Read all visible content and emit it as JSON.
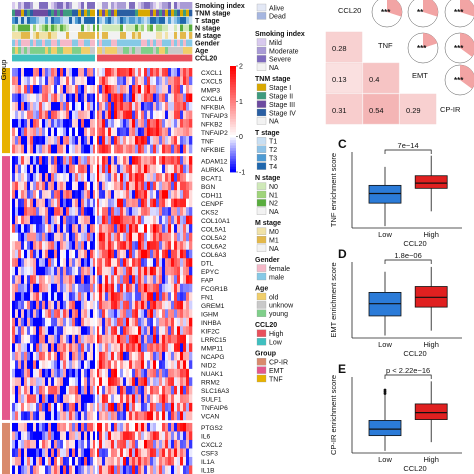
{
  "heatmap": {
    "annotation_rows": [
      "Smoking index",
      "TNM stage",
      "T stage",
      "N stage",
      "M stage",
      "Gender",
      "Age",
      "CCL20"
    ],
    "group_label": "Group",
    "colorbar_ticks": [
      "2",
      "1",
      "0",
      "-1"
    ],
    "gene_groups": [
      {
        "name": "TNF",
        "color": "#e8b200",
        "genes": [
          "CXCL1",
          "CXCL5",
          "MMP3",
          "CXCL6",
          "NFKBIA",
          "TNFAIP3",
          "NFKB2",
          "TNFAIP2",
          "TNF",
          "NFKBIE"
        ]
      },
      {
        "name": "EMT",
        "color": "#e4578c",
        "genes": [
          "ADAM12",
          "AURKA",
          "BCAT1",
          "BGN",
          "CDH11",
          "CENPF",
          "CKS2",
          "COL10A1",
          "COL5A1",
          "COL5A2",
          "COL6A2",
          "COL6A3",
          "DTL",
          "EPYC",
          "FAP",
          "FCGR1B",
          "FN1",
          "GREM1",
          "IGHM",
          "INHBA",
          "KIF2C",
          "LRRC15",
          "MMP11",
          "NCAPG",
          "NID2",
          "NUAK1",
          "RRM2",
          "SLC16A3",
          "SULF1",
          "TNFAIP6",
          "VCAN"
        ]
      },
      {
        "name": "CP-IR",
        "color": "#d98a6c",
        "genes": [
          "PTGS2",
          "IL6",
          "CXCL2",
          "CSF3",
          "IL1A",
          "IL1B"
        ]
      }
    ]
  },
  "legend": {
    "top": [
      {
        "label": "Alive",
        "color": "#e3e8f5"
      },
      {
        "label": "Dead",
        "color": "#a6b6e0"
      }
    ],
    "groups": [
      {
        "title": "Smoking index",
        "items": [
          {
            "label": "Mild",
            "color": "#d8c9ee"
          },
          {
            "label": "Moderate",
            "color": "#a99bd6"
          },
          {
            "label": "Severe",
            "color": "#7f6cbf"
          },
          {
            "label": "NA",
            "color": "#f2f2f2"
          }
        ]
      },
      {
        "title": "TNM stage",
        "items": [
          {
            "label": "Stage I",
            "color": "#d8a800"
          },
          {
            "label": "Stage II",
            "color": "#3e9b7e"
          },
          {
            "label": "Stage III",
            "color": "#6c4aa0"
          },
          {
            "label": "Stage IV",
            "color": "#2a5fa3"
          },
          {
            "label": "NA",
            "color": "#f2f2f2"
          }
        ]
      },
      {
        "title": "T stage",
        "items": [
          {
            "label": "T1",
            "color": "#c8dff3"
          },
          {
            "label": "T2",
            "color": "#8ec3e8"
          },
          {
            "label": "T3",
            "color": "#4d9bd4"
          },
          {
            "label": "T4",
            "color": "#1f67ad"
          }
        ]
      },
      {
        "title": "N stage",
        "items": [
          {
            "label": "N0",
            "color": "#cfe9b8"
          },
          {
            "label": "N1",
            "color": "#9fd47a"
          },
          {
            "label": "N2",
            "color": "#59ad3e"
          },
          {
            "label": "NA",
            "color": "#f2f2f2"
          }
        ]
      },
      {
        "title": "M stage",
        "items": [
          {
            "label": "M0",
            "color": "#f0e2a8"
          },
          {
            "label": "M1",
            "color": "#e3b84a"
          },
          {
            "label": "NA",
            "color": "#f2f2f2"
          }
        ]
      },
      {
        "title": "Gender",
        "items": [
          {
            "label": "female",
            "color": "#f5b8c8"
          },
          {
            "label": "male",
            "color": "#86c9e6"
          }
        ]
      },
      {
        "title": "Age",
        "items": [
          {
            "label": "old",
            "color": "#f0ce6a"
          },
          {
            "label": "unknow",
            "color": "#c9c9c9"
          },
          {
            "label": "young",
            "color": "#7fcf8a"
          }
        ]
      },
      {
        "title": "CCL20",
        "items": [
          {
            "label": "High",
            "color": "#e8505b"
          },
          {
            "label": "Low",
            "color": "#3fbfbf"
          }
        ]
      },
      {
        "title": "Group",
        "items": [
          {
            "label": "CP-IR",
            "color": "#d98a6c"
          },
          {
            "label": "EMT",
            "color": "#e4578c"
          },
          {
            "label": "TNF",
            "color": "#e8b200"
          }
        ]
      }
    ]
  },
  "correlation": {
    "ccl20_label": "CCL20",
    "variables": [
      "TNF",
      "EMT",
      "CP-IR"
    ],
    "ccl20_stars": [
      "***",
      "**",
      "***",
      "***"
    ],
    "pair_stars": [
      "***",
      "***"
    ],
    "lower_values": [
      {
        "r": 0.28,
        "text": "0.28"
      },
      {
        "r": 0.13,
        "text": "0.13"
      },
      {
        "r": 0.4,
        "text": "0.4"
      },
      {
        "r": 0.31,
        "text": "0.31"
      },
      {
        "r": 0.54,
        "text": "0.54"
      },
      {
        "r": 0.29,
        "text": "0.29"
      }
    ]
  },
  "chart_data": [
    {
      "type": "box",
      "panel": "C",
      "xlabel": "CCL20",
      "ylabel": "TNF enrichment score",
      "categories": [
        "Low",
        "High"
      ],
      "pvalue": "7e−14",
      "colors": [
        "#2b7bd8",
        "#e02020"
      ],
      "boxes": [
        {
          "whisker_low": -1.0,
          "q1": -0.38,
          "median": -0.12,
          "q3": 0.1,
          "whisker_high": 0.6
        },
        {
          "whisker_low": -0.6,
          "q1": 0.02,
          "median": 0.16,
          "q3": 0.36,
          "whisker_high": 0.9
        }
      ],
      "ylim": [
        -1.05,
        1.0
      ]
    },
    {
      "type": "box",
      "panel": "D",
      "xlabel": "CCL20",
      "ylabel": "EMT enrichment score",
      "categories": [
        "Low",
        "High"
      ],
      "pvalue": "1.8e−06",
      "colors": [
        "#2b7bd8",
        "#e02020"
      ],
      "boxes": [
        {
          "whisker_low": -0.7,
          "q1": -0.3,
          "median": -0.05,
          "q3": 0.18,
          "whisker_high": 0.6
        },
        {
          "whisker_low": -0.6,
          "q1": -0.12,
          "median": 0.08,
          "q3": 0.3,
          "whisker_high": 0.7
        }
      ],
      "ylim": [
        -0.75,
        0.8
      ]
    },
    {
      "type": "box",
      "panel": "E",
      "xlabel": "CCL20",
      "ylabel": "CP-IR enrichment score",
      "categories": [
        "Low",
        "High"
      ],
      "pvalue": "p < 2.22e−16",
      "colors": [
        "#2b7bd8",
        "#e02020"
      ],
      "boxes": [
        {
          "whisker_low": -0.7,
          "q1": -0.35,
          "median": -0.2,
          "q3": 0.0,
          "whisker_high": 0.6,
          "outliers": [
            0.62,
            0.66,
            0.7
          ]
        },
        {
          "whisker_low": -0.5,
          "q1": 0.02,
          "median": 0.18,
          "q3": 0.38,
          "whisker_high": 0.9
        }
      ],
      "ylim": [
        -0.75,
        1.0
      ]
    }
  ]
}
